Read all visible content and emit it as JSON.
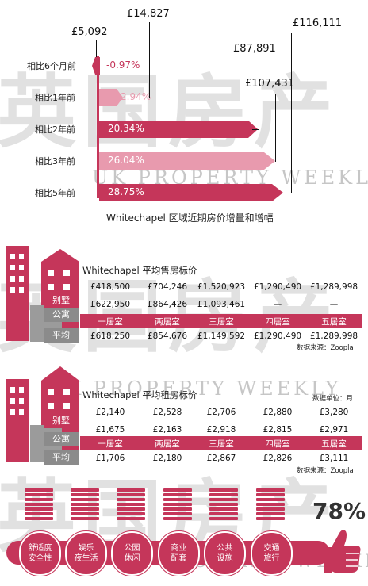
{
  "watermark": {
    "chars": "英国房产",
    "line": "UK PROPERTY WEEKLY"
  },
  "growth": {
    "title": "Whitechapel 区域近期房价增量和增幅",
    "rows": [
      {
        "period": "相比6个月前",
        "pct": "-0.97%",
        "amount": "£5,092"
      },
      {
        "period": "相比1年前",
        "pct": "2.94%",
        "amount": "£14,827"
      },
      {
        "period": "相比2年前",
        "pct": "20.34%",
        "amount": "£87,891"
      },
      {
        "period": "相比3年前",
        "pct": "26.04%",
        "amount": "£107,431"
      },
      {
        "period": "相比5年前",
        "pct": "28.75%",
        "amount": "£116,111"
      }
    ]
  },
  "sale": {
    "title": "Whitechapel 平均售房标价",
    "row_labels": {
      "villa": "别墅",
      "flat": "公寓",
      "avg": "平均"
    },
    "columns": [
      "一居室",
      "两居室",
      "三居室",
      "四居室",
      "五居室"
    ],
    "villa": [
      "£418,500",
      "£704,246",
      "£1,520,923",
      "£1,290,490",
      "£1,289,998"
    ],
    "flat": [
      "£622,950",
      "£864,426",
      "£1,093,461",
      "—",
      "—"
    ],
    "avg": [
      "£618,250",
      "£854,676",
      "£1,149,592",
      "£1,290,490",
      "£1,289,998"
    ],
    "source": "数据来源：Zoopla"
  },
  "rent": {
    "title": "Whitechapel 平均租房标价",
    "unit": "数据单位：月",
    "row_labels": {
      "villa": "别墅",
      "flat": "公寓",
      "avg": "平均"
    },
    "columns": [
      "一居室",
      "两居室",
      "三居室",
      "四居室",
      "五居室"
    ],
    "villa": [
      "£2,140",
      "£2,528",
      "£2,706",
      "£2,880",
      "£3,280"
    ],
    "flat": [
      "£1,675",
      "£2,163",
      "£2,918",
      "£2,815",
      "£2,971"
    ],
    "avg": [
      "£1,706",
      "£2,180",
      "£2,867",
      "£2,826",
      "£3,111"
    ],
    "source": "数据来源：Zoopla"
  },
  "amenities": {
    "items": [
      {
        "line1": "舒适度",
        "line2": "安全性"
      },
      {
        "line1": "娱乐",
        "line2": "夜生活"
      },
      {
        "line1": "公园",
        "line2": "休闲"
      },
      {
        "line1": "商业",
        "line2": "配套"
      },
      {
        "line1": "公共",
        "line2": "设施"
      },
      {
        "line1": "交通",
        "line2": "旅行"
      }
    ],
    "score": "78%",
    "score_icon": "thumbs-up-icon",
    "levels": [
      0.6,
      0.6,
      0.6,
      0.6,
      0.6,
      0.6
    ]
  },
  "colors": {
    "accent": "#c5365a",
    "light": "#e89aae",
    "grey": "#8b8b8b"
  }
}
